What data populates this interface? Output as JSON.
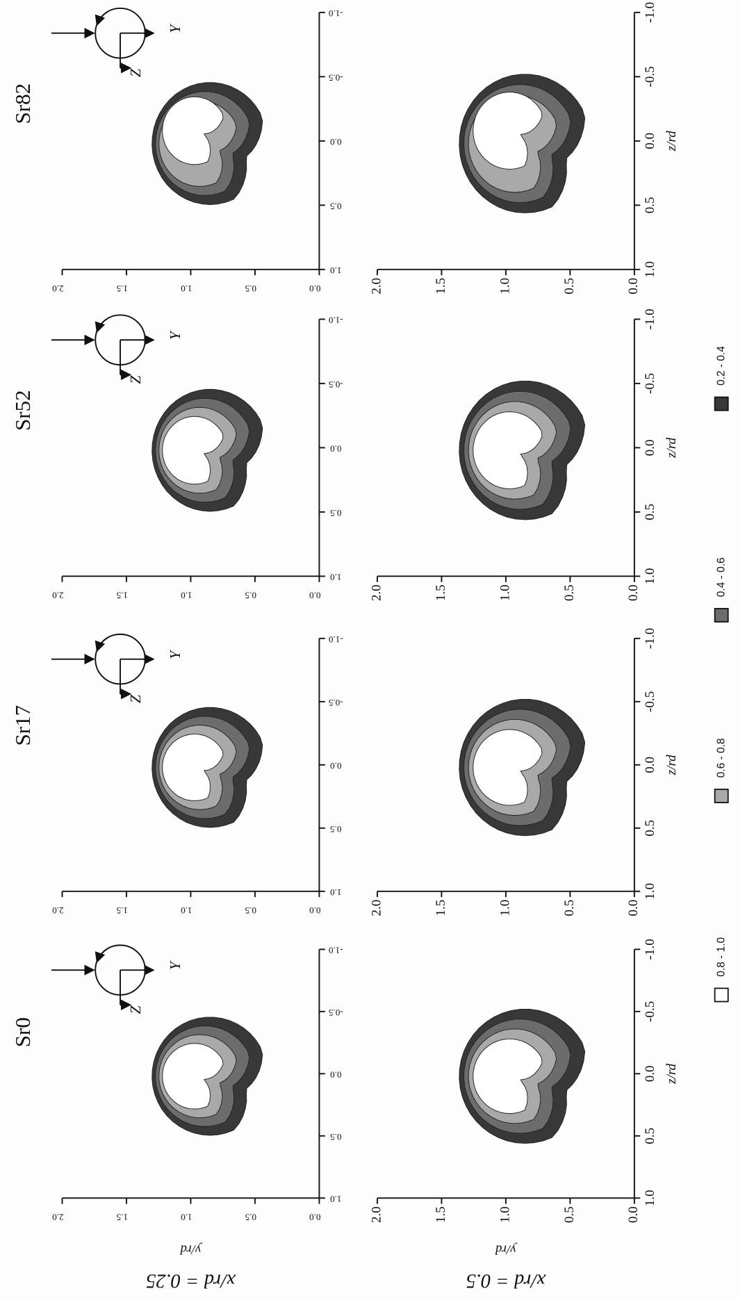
{
  "panel_titles": [
    "Sr0",
    "Sr17",
    "Sr52",
    "Sr82"
  ],
  "row_labels": [
    "x/rd = 0.25",
    "x/rd = 0.5"
  ],
  "x_axis": {
    "label": "z/rd",
    "ticks": [
      "1.0",
      "0.5",
      "0.0",
      "-0.5",
      "-1.0"
    ]
  },
  "y_axis": {
    "label": "y/rd",
    "ticks": [
      "2.0",
      "1.5",
      "1.0",
      "0.5",
      "0.0"
    ]
  },
  "inset": {
    "y_label": "Y",
    "z_label": "Z"
  },
  "legend": [
    {
      "label": "0.8 - 1.0",
      "color": "#ffffff"
    },
    {
      "label": "0.6 - 0.8",
      "color": "#a9a9a9"
    },
    {
      "label": "0.4 - 0.6",
      "color": "#6c6c6c"
    },
    {
      "label": "0.2 - 0.4",
      "color": "#383838"
    }
  ]
}
